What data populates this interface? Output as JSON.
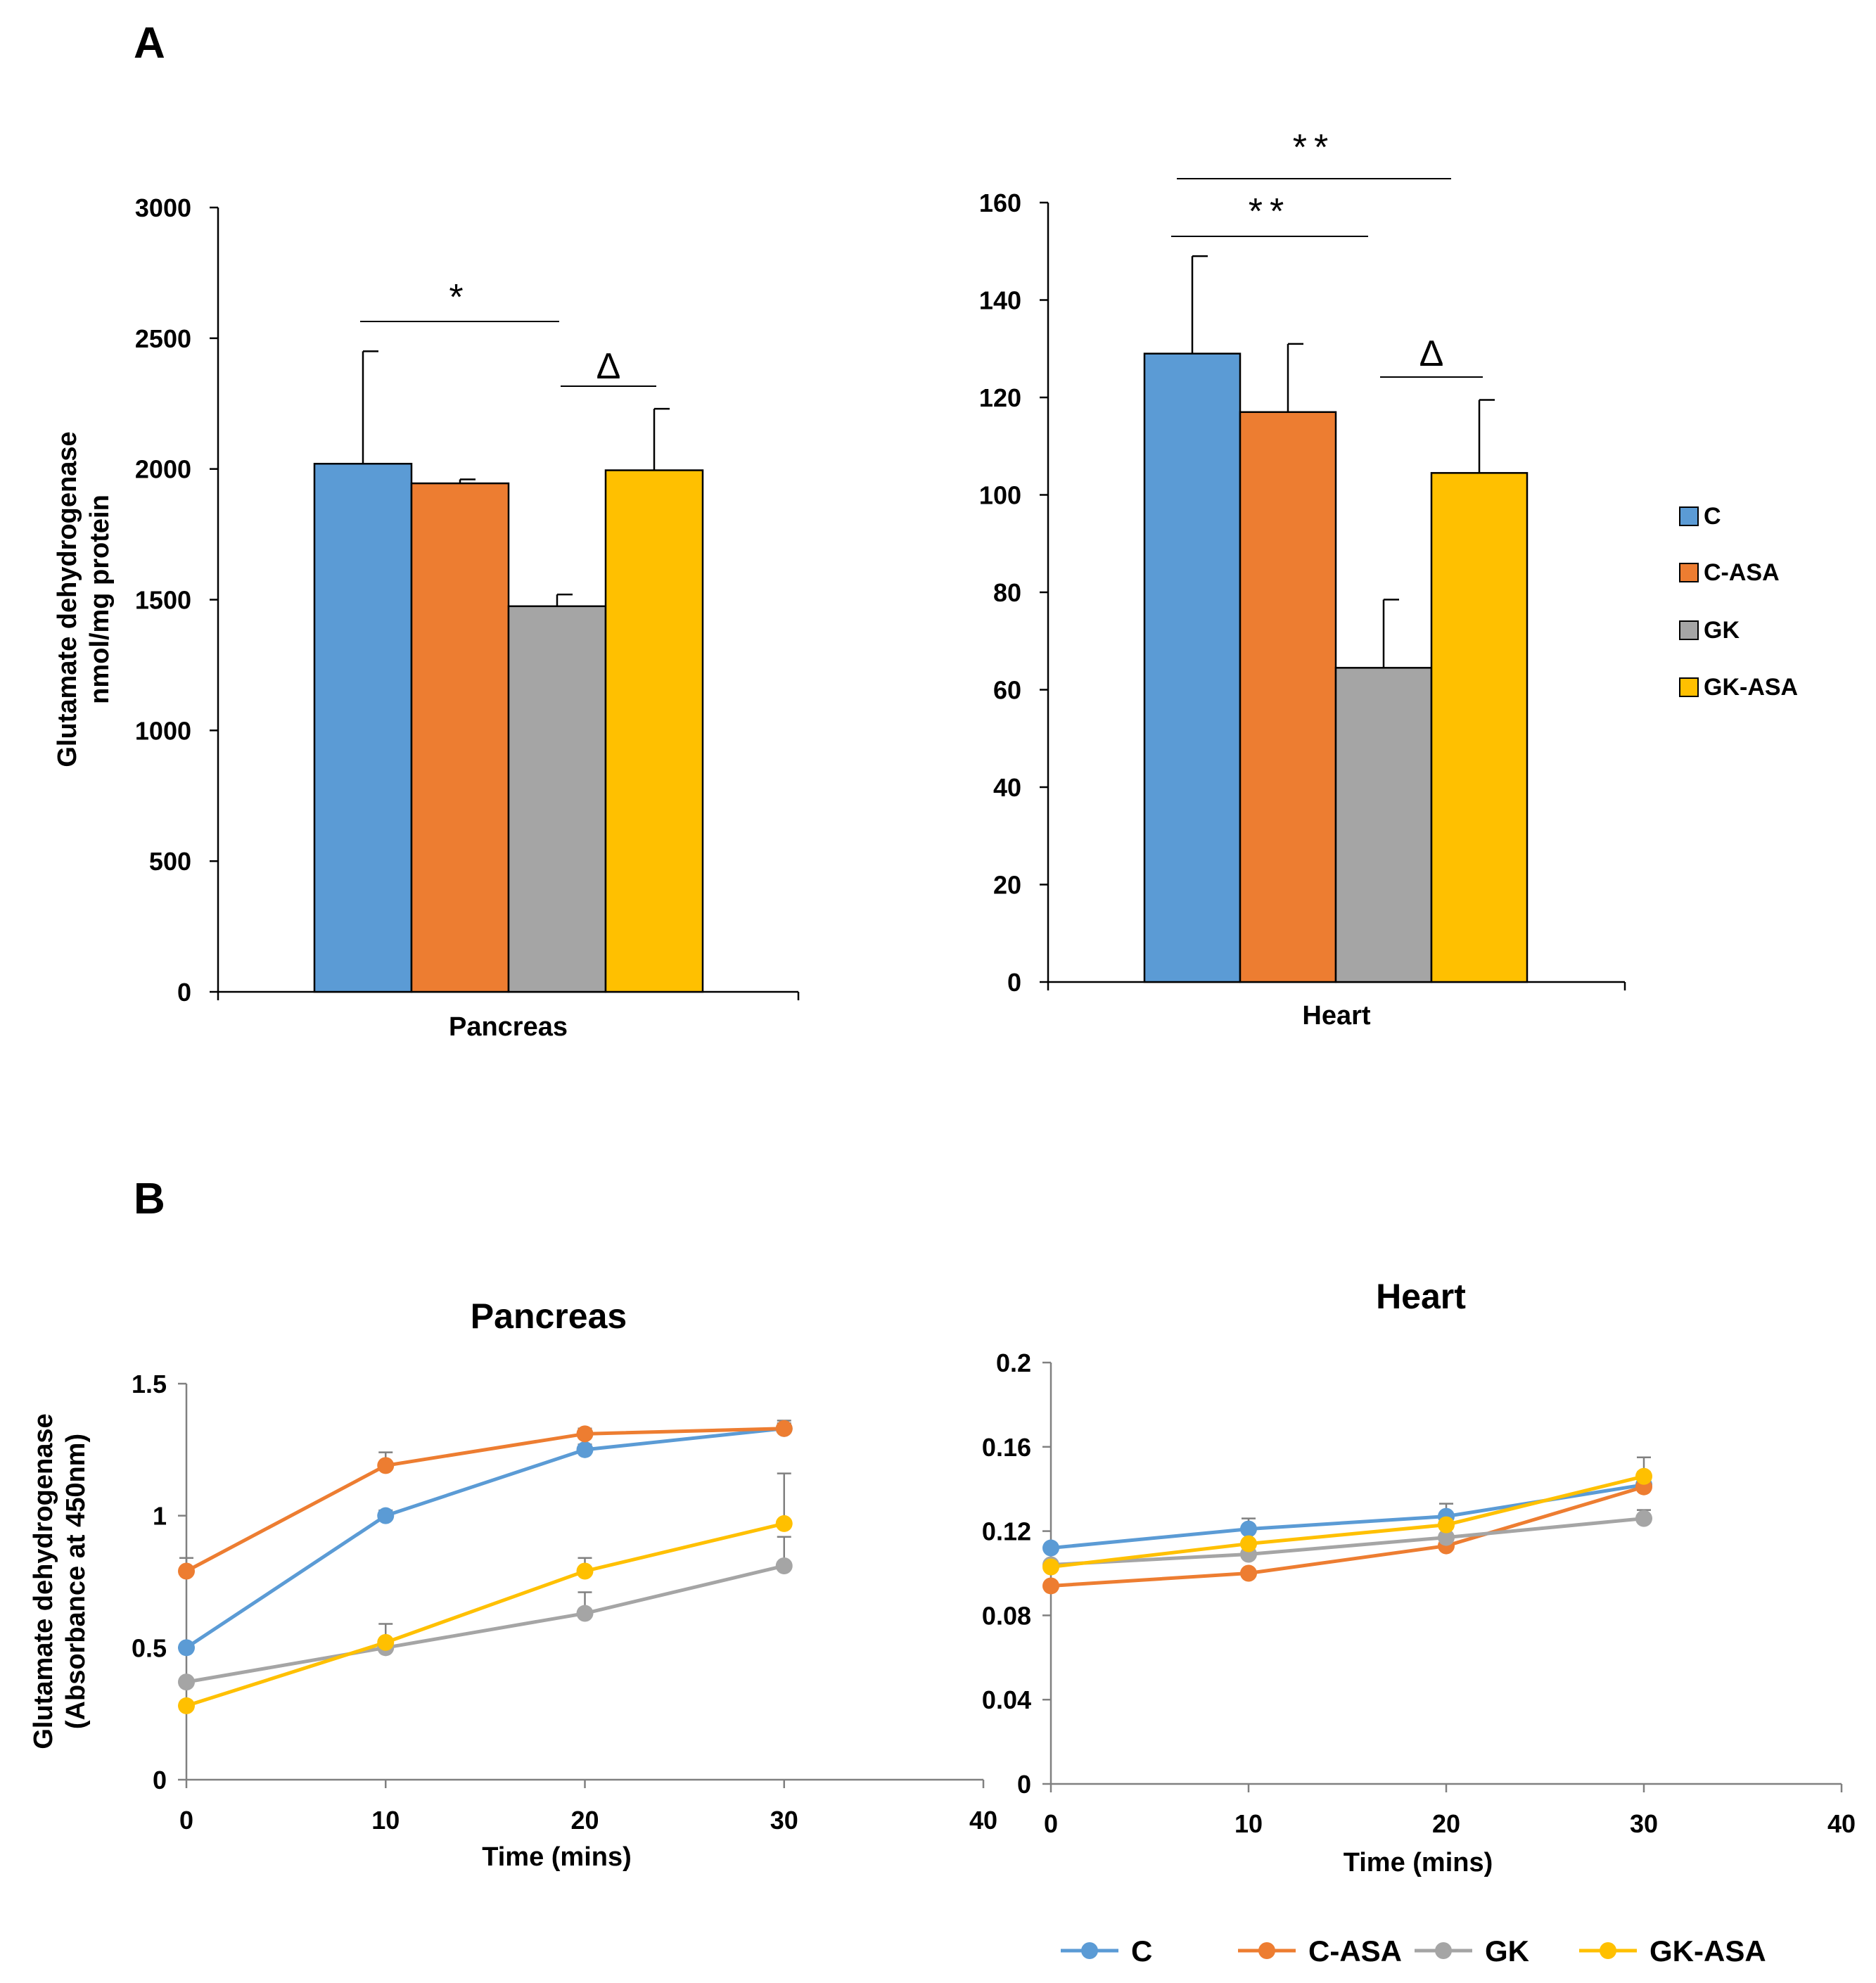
{
  "panels": {
    "a_label": "A",
    "b_label": "B"
  },
  "legend": {
    "items": [
      {
        "name": "C",
        "color": "#5B9BD5"
      },
      {
        "name": "C-ASA",
        "color": "#ED7D31"
      },
      {
        "name": "GK",
        "color": "#A5A5A5"
      },
      {
        "name": "GK-ASA",
        "color": "#FFC000"
      }
    ]
  },
  "chart_data": [
    {
      "id": "a_pancreas",
      "type": "bar",
      "categories": [
        "Pancreas"
      ],
      "series": [
        {
          "name": "C",
          "values": [
            2020
          ],
          "error": [
            430
          ]
        },
        {
          "name": "C-ASA",
          "values": [
            1945
          ],
          "error": [
            15
          ]
        },
        {
          "name": "GK",
          "values": [
            1475
          ],
          "error": [
            45
          ]
        },
        {
          "name": "GK-ASA",
          "values": [
            1995
          ],
          "error": [
            235
          ]
        }
      ],
      "title": "",
      "xlabel": "Pancreas",
      "ylabel": "Glutamate dehydrogenase\nnmol/mg protein",
      "ylim": [
        0,
        3000
      ],
      "yticks": [
        "0",
        "500",
        "1000",
        "1500",
        "2000",
        "2500",
        "3000"
      ],
      "annotations": [
        {
          "text": "*",
          "from": "C",
          "to": "GK"
        },
        {
          "text": "Δ",
          "from": "GK",
          "to": "GK-ASA"
        }
      ]
    },
    {
      "id": "a_heart",
      "type": "bar",
      "categories": [
        "Heart"
      ],
      "series": [
        {
          "name": "C",
          "values": [
            129
          ],
          "error": [
            20
          ]
        },
        {
          "name": "C-ASA",
          "values": [
            117
          ],
          "error": [
            14
          ]
        },
        {
          "name": "GK",
          "values": [
            64.5
          ],
          "error": [
            14
          ]
        },
        {
          "name": "GK-ASA",
          "values": [
            104.5
          ],
          "error": [
            15
          ]
        }
      ],
      "title": "",
      "xlabel": "Heart",
      "ylabel": "",
      "ylim": [
        0,
        160
      ],
      "yticks": [
        "0",
        "20",
        "40",
        "60",
        "80",
        "100",
        "120",
        "140",
        "160"
      ],
      "annotations": [
        {
          "text": "**",
          "from": "C",
          "to": "GK-ASA"
        },
        {
          "text": "**",
          "from": "C",
          "to": "GK"
        },
        {
          "text": "Δ",
          "from": "GK",
          "to": "GK-ASA"
        }
      ]
    },
    {
      "id": "b_pancreas",
      "type": "line",
      "title": "Pancreas",
      "xlabel": "Time (mins)",
      "ylabel": "Glutamate dehydrogenase\n(Absorbance at 450nm)",
      "xlim": [
        0,
        40
      ],
      "ylim": [
        0,
        1.5
      ],
      "xticks": [
        "0",
        "10",
        "20",
        "30",
        "40"
      ],
      "yticks": [
        "0",
        "0.5",
        "1",
        "1.5"
      ],
      "x": [
        0,
        10,
        20,
        30
      ],
      "series": [
        {
          "name": "C",
          "values": [
            0.5,
            1.0,
            1.25,
            1.33
          ],
          "error": [
            0,
            0.02,
            0.02,
            0.03
          ]
        },
        {
          "name": "C-ASA",
          "values": [
            0.79,
            1.19,
            1.31,
            1.33
          ],
          "error": [
            0.05,
            0.05,
            0.02,
            0.02
          ]
        },
        {
          "name": "GK",
          "values": [
            0.37,
            0.5,
            0.63,
            0.81
          ],
          "error": [
            0,
            0.03,
            0.08,
            0.11
          ]
        },
        {
          "name": "GK-ASA",
          "values": [
            0.28,
            0.52,
            0.79,
            0.97
          ],
          "error": [
            0,
            0.07,
            0.05,
            0.19
          ]
        }
      ]
    },
    {
      "id": "b_heart",
      "type": "line",
      "title": "Heart",
      "xlabel": "Time (mins)",
      "ylabel": "",
      "xlim": [
        0,
        40
      ],
      "ylim": [
        0,
        0.2
      ],
      "xticks": [
        "0",
        "10",
        "20",
        "30",
        "40"
      ],
      "yticks": [
        "0",
        "0.04",
        "0.08",
        "0.12",
        "0.16",
        "0.2"
      ],
      "x": [
        0,
        10,
        20,
        30
      ],
      "series": [
        {
          "name": "C",
          "values": [
            0.112,
            0.121,
            0.127,
            0.142
          ],
          "error": [
            0,
            0.005,
            0.006,
            0.006
          ]
        },
        {
          "name": "C-ASA",
          "values": [
            0.094,
            0.1,
            0.113,
            0.141
          ],
          "error": [
            0,
            0,
            0,
            0.006
          ]
        },
        {
          "name": "GK",
          "values": [
            0.104,
            0.109,
            0.117,
            0.126
          ],
          "error": [
            0,
            0,
            0,
            0.004
          ]
        },
        {
          "name": "GK-ASA",
          "values": [
            0.103,
            0.114,
            0.123,
            0.146
          ],
          "error": [
            0,
            0.006,
            0.005,
            0.009
          ]
        }
      ]
    }
  ]
}
